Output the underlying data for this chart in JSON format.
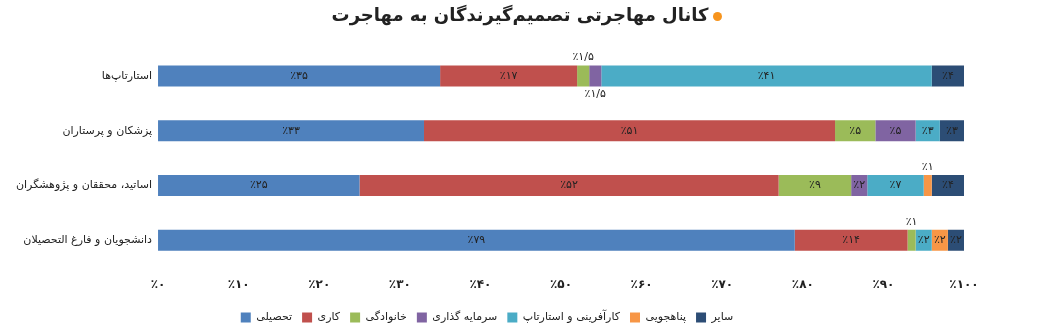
{
  "chart_data": {
    "type": "bar",
    "orientation": "horizontal",
    "stacked": true,
    "title": "کانال مهاجرتی تصمیم‌گیرندگان  به مهاجرت",
    "categories": [
      "استارتاپ‌ها",
      "پزشکان و پرستاران",
      "اساتید، محققان و پژوهشگران",
      "دانشجویان و فارغ التحصیلان"
    ],
    "series": [
      {
        "name": "تحصیلی",
        "color": "#4f81bd",
        "values": [
          35,
          33,
          25,
          79
        ],
        "value_labels": [
          "٪۳۵",
          "٪۳۳",
          "٪۲۵",
          "٪۷۹"
        ]
      },
      {
        "name": "کاری",
        "color": "#c0504d",
        "values": [
          17,
          51,
          52,
          14
        ],
        "value_labels": [
          "٪۱۷",
          "٪۵۱",
          "٪۵۲",
          "٪۱۴"
        ]
      },
      {
        "name": "خانوادگی",
        "color": "#9bbb59",
        "values": [
          1.5,
          5,
          9,
          1
        ],
        "value_labels": [
          "٪۱/۵",
          "٪۵",
          "٪۹",
          "٪۱"
        ]
      },
      {
        "name": "سرمایه گذاری",
        "color": "#8064a2",
        "values": [
          1.5,
          5,
          2,
          0
        ],
        "value_labels": [
          "٪۱/۵",
          "٪۵",
          "٪۲",
          null
        ]
      },
      {
        "name": "کارآفرینی و استارتاپ",
        "color": "#4bacc6",
        "values": [
          41,
          3,
          7,
          2
        ],
        "value_labels": [
          "٪۴۱",
          "٪۳",
          "٪۷",
          "٪۲"
        ]
      },
      {
        "name": "پناهجویی",
        "color": "#f79646",
        "values": [
          0,
          0,
          1,
          2
        ],
        "value_labels": [
          null,
          null,
          "٪۱",
          "٪۲"
        ]
      },
      {
        "name": "سایر",
        "color": "#2c4d75",
        "values": [
          4,
          3,
          4,
          2
        ],
        "value_labels": [
          "٪۴",
          "٪۳",
          "٪۴",
          "٪۲"
        ]
      }
    ],
    "xlim": [
      0,
      100
    ],
    "xticks": [
      {
        "value": 0,
        "label": "٪۰"
      },
      {
        "value": 10,
        "label": "٪۱۰"
      },
      {
        "value": 20,
        "label": "٪۲۰"
      },
      {
        "value": 30,
        "label": "٪۳۰"
      },
      {
        "value": 40,
        "label": "٪۴۰"
      },
      {
        "value": 50,
        "label": "٪۵۰"
      },
      {
        "value": 60,
        "label": "٪۶۰"
      },
      {
        "value": 70,
        "label": "٪۷۰"
      },
      {
        "value": 80,
        "label": "٪۸۰"
      },
      {
        "value": 90,
        "label": "٪۹۰"
      },
      {
        "value": 100,
        "label": "٪۱۰۰"
      }
    ],
    "grid": false,
    "legend": "bottom"
  }
}
